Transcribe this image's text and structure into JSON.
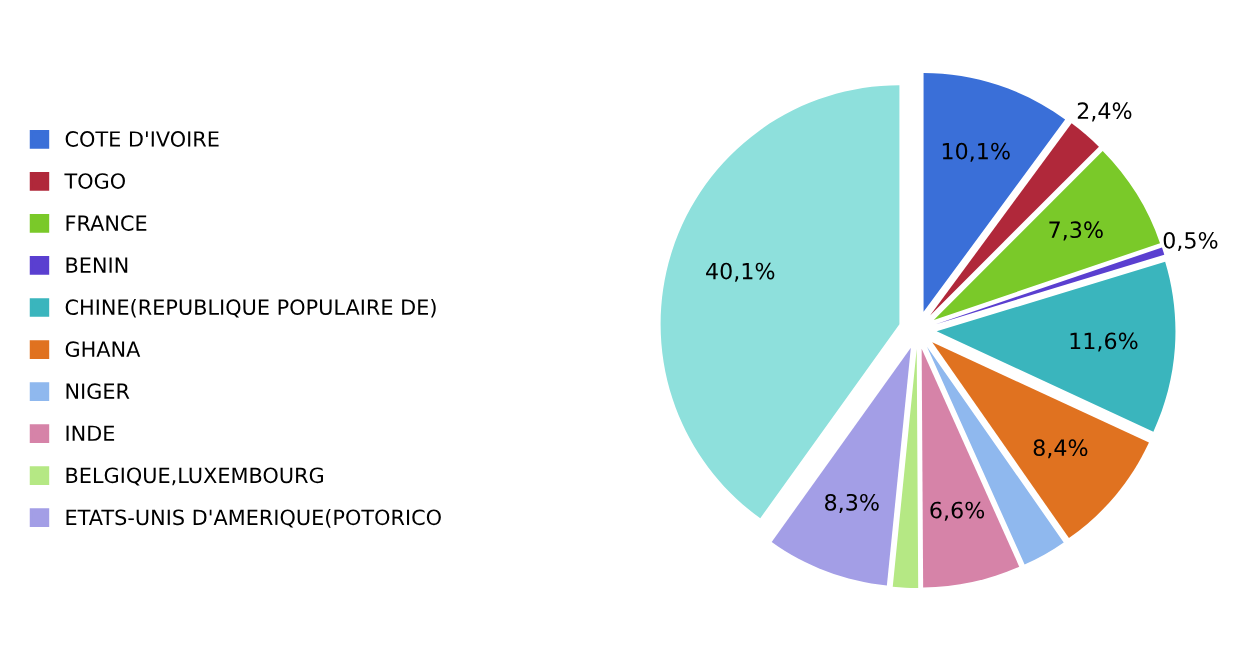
{
  "chart_data": {
    "type": "pie",
    "categories": [
      "COTE D'IVOIRE",
      "TOGO",
      "FRANCE",
      "BENIN",
      "CHINE(REPUBLIQUE POPULAIRE DE)",
      "GHANA",
      "NIGER",
      "INDE",
      "BELGIQUE,LUXEMBOURG",
      "ETATS-UNIS D'AMERIQUE(POTORICO",
      null
    ],
    "values": [
      10.1,
      2.4,
      7.3,
      0.5,
      11.6,
      8.4,
      3.0,
      6.6,
      1.7,
      8.3,
      40.1
    ],
    "value_labels": [
      "10,1%",
      "2,4%",
      "7,3%",
      "0,5%",
      "11,6%",
      "8,4%",
      null,
      "6,6%",
      null,
      "8,3%",
      "40,1%"
    ],
    "colors": [
      "#3a6fd8",
      "#b0283a",
      "#7ac929",
      "#5a3fd0",
      "#3ab5bd",
      "#e07220",
      "#8fb8ee",
      "#d683a8",
      "#b5e884",
      "#a39ee6",
      "#8ee0dc"
    ],
    "legend": "left"
  }
}
